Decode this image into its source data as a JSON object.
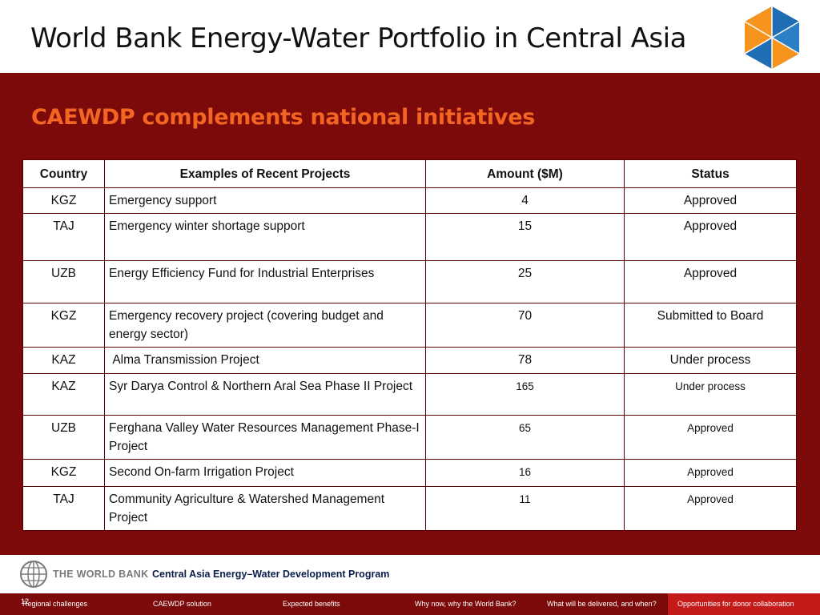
{
  "slide": {
    "title": "World Bank Energy-Water Portfolio in Central Asia",
    "subtitle": "CAEWDP complements national initiatives"
  },
  "table": {
    "headers": [
      "Country",
      "Examples of Recent Projects",
      "Amount ($M)",
      "Status"
    ],
    "rows": [
      {
        "country": "KGZ",
        "project": "Emergency support",
        "amount": "4",
        "status": "Approved"
      },
      {
        "country": "TAJ",
        "project": "Emergency winter shortage support",
        "amount": "15",
        "status": "Approved"
      },
      {
        "country": "UZB",
        "project": "Energy Efficiency Fund for Industrial Enterprises",
        "amount": "25",
        "status": "Approved"
      },
      {
        "country": "KGZ",
        "project": "Emergency recovery project  (covering budget and energy sector)",
        "amount": "70",
        "status": "Submitted to Board"
      },
      {
        "country": "KAZ",
        "project": "Alma Transmission Project",
        "amount": "78",
        "status": "Under process"
      },
      {
        "country": "KAZ",
        "project": "Syr Darya Control & Northern Aral Sea Phase II Project",
        "amount": "165",
        "status": "Under process"
      },
      {
        "country": "UZB",
        "project": "Ferghana Valley Water Resources Management Phase-I Project",
        "amount": "65",
        "status": "Approved"
      },
      {
        "country": "KGZ",
        "project": "Second On-farm Irrigation Project",
        "amount": "16",
        "status": "Approved"
      },
      {
        "country": "TAJ",
        "project": "Community Agriculture & Watershed Management Project",
        "amount": "11",
        "status": "Approved"
      }
    ]
  },
  "footer": {
    "logo_text": "THE WORLD BANK",
    "program": "Central Asia Energy–Water Development Program",
    "page_number": "12"
  },
  "nav": {
    "items": [
      "Regional challenges",
      "CAEWDP solution",
      "Expected benefits",
      "Why now, why the World Bank?",
      "What will be delivered, and when?",
      "Opportunities for donor collaboration"
    ],
    "active_index": 5
  },
  "colors": {
    "panel": "#7d0a0a",
    "accent": "#f26522",
    "nav_active": "#c41a1a",
    "logo_orange": "#f7941d",
    "logo_blue": "#1f6db3"
  }
}
